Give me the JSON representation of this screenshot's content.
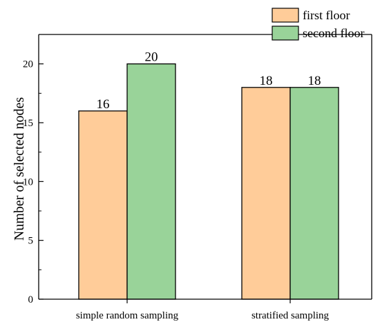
{
  "chart_data": {
    "type": "bar",
    "categories": [
      "simple random sampling",
      "stratified sampling"
    ],
    "series": [
      {
        "name": "first floor",
        "values": [
          16,
          18
        ],
        "color": "#FFCC99"
      },
      {
        "name": "second floor",
        "values": [
          20,
          18
        ],
        "color": "#99D399"
      }
    ],
    "title": "",
    "xlabel": "",
    "ylabel": "Number of selected nodes",
    "ylim": [
      0,
      22.5
    ],
    "yticks": [
      0,
      5,
      10,
      15,
      20
    ],
    "grid": false,
    "legend_position": "top-right",
    "show_data_labels": true
  }
}
